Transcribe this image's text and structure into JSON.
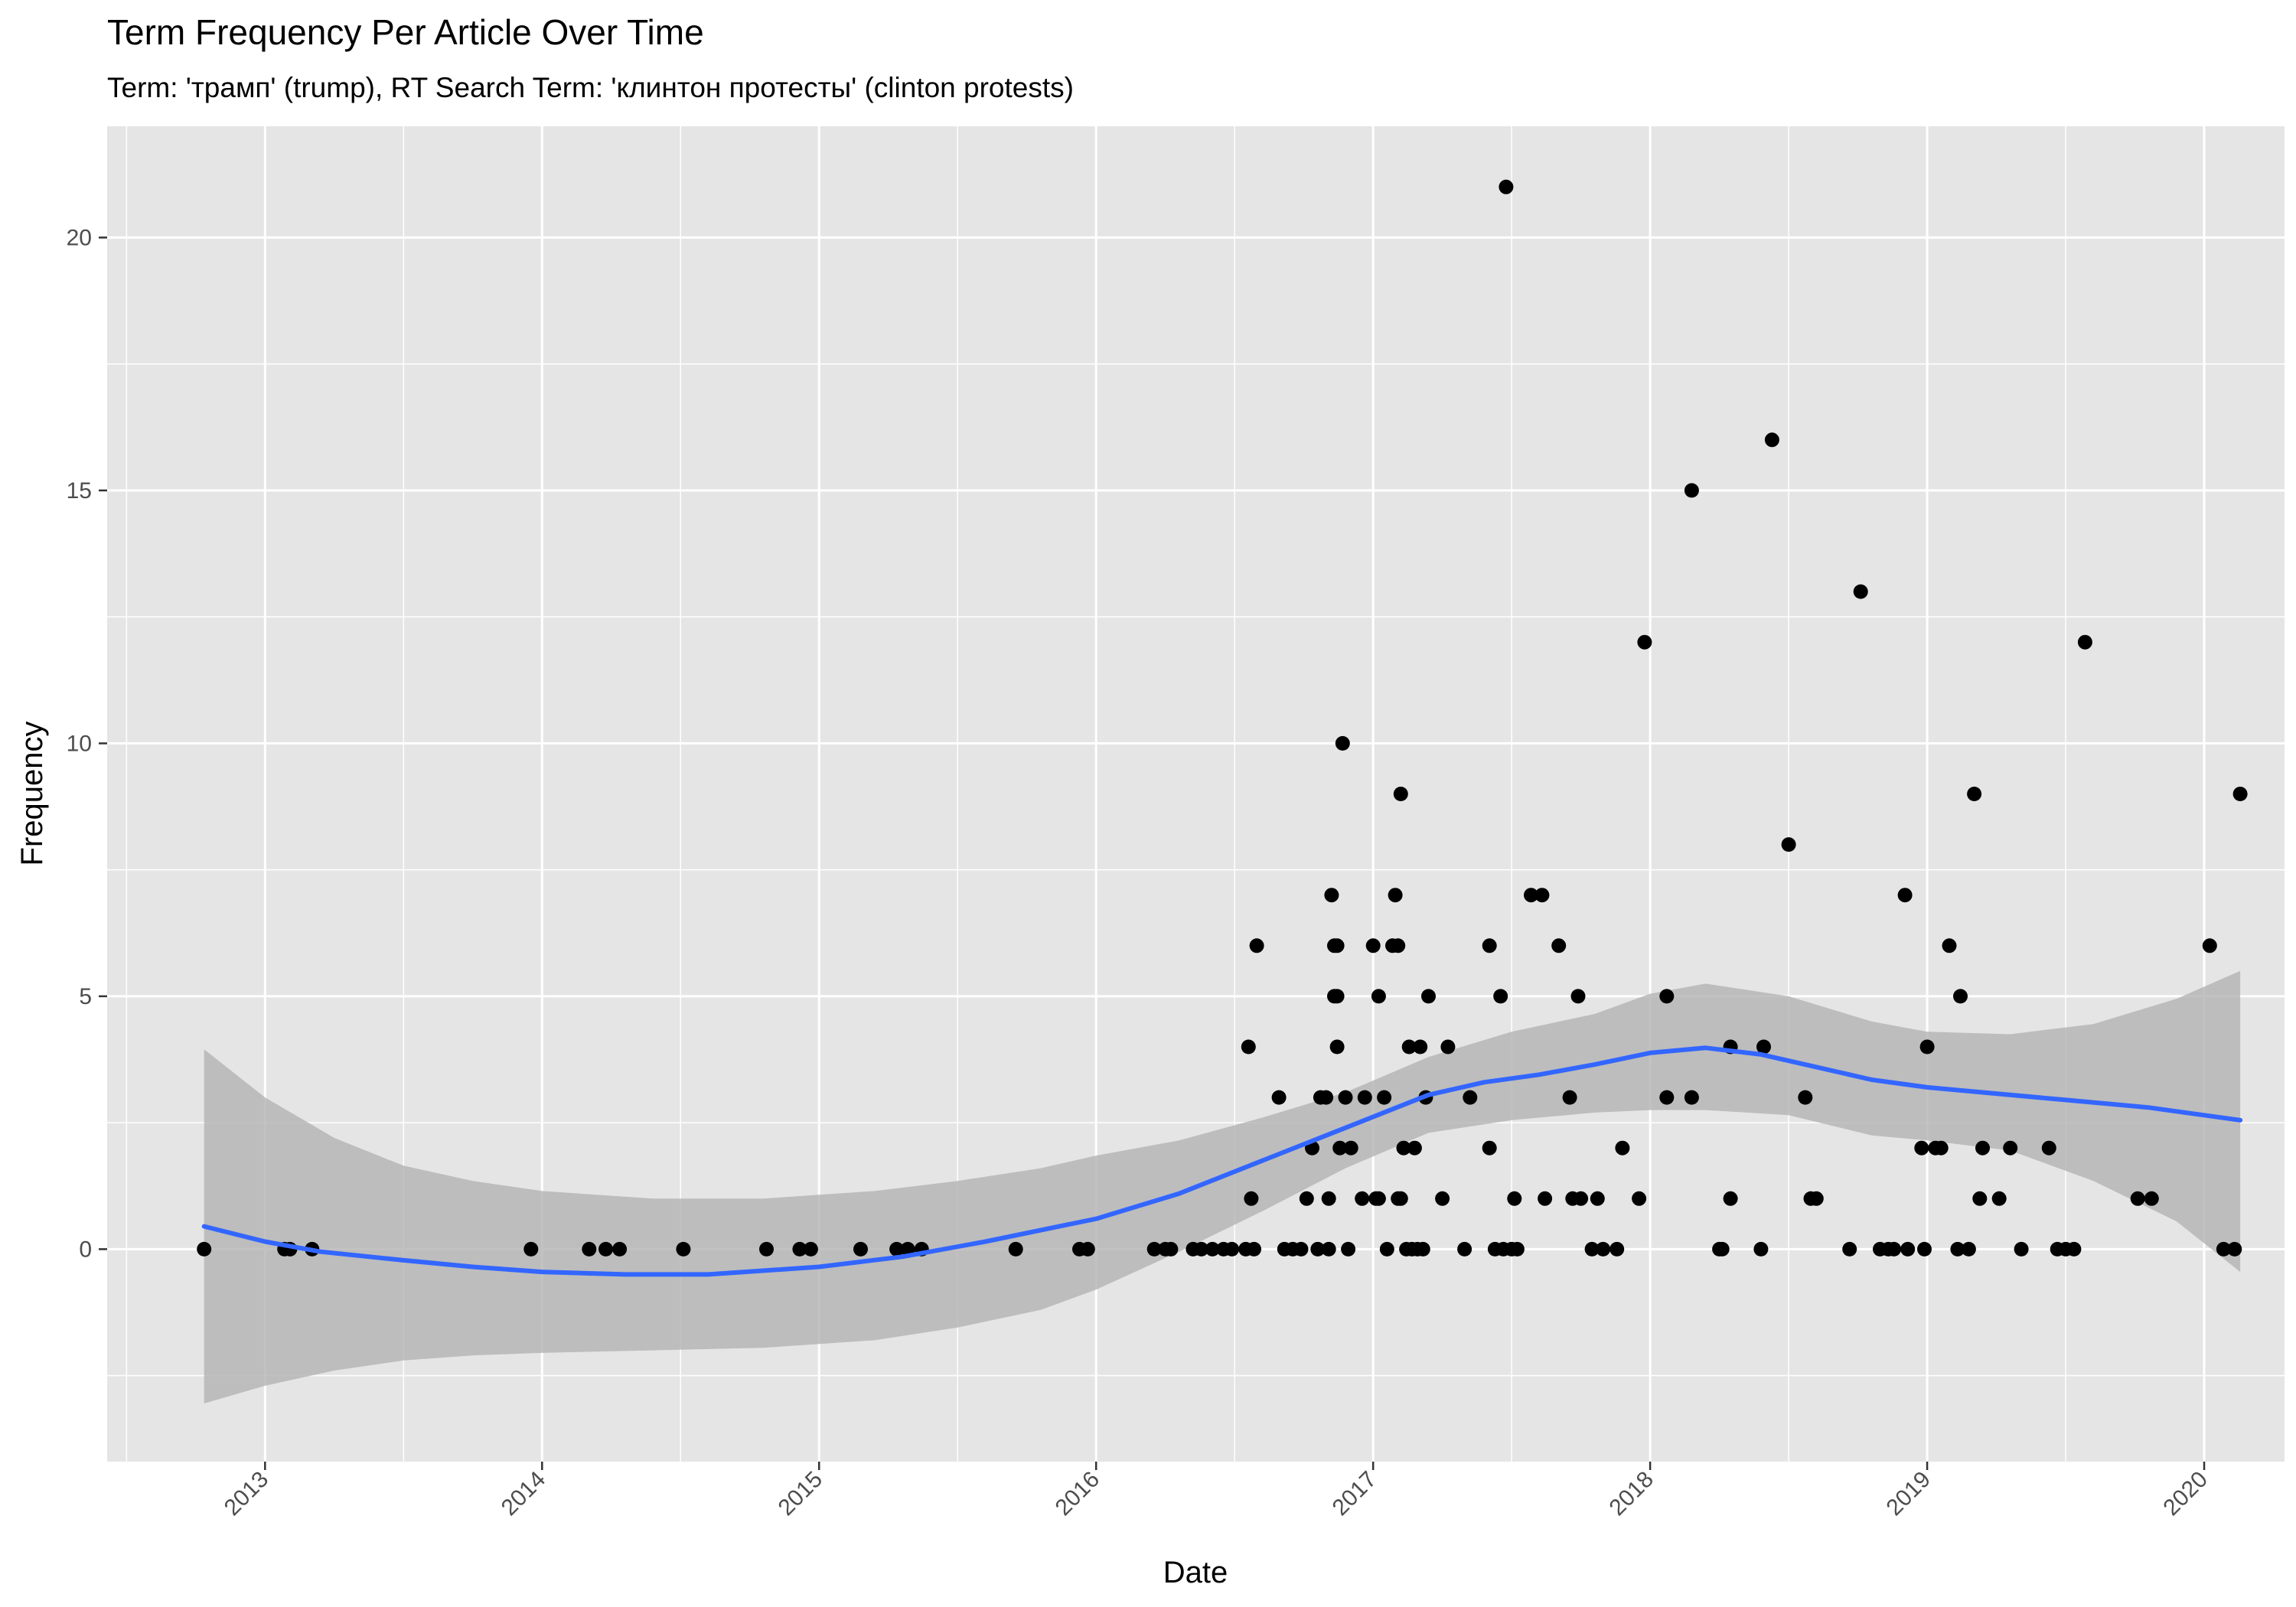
{
  "colors": {
    "panel_background": "#e5e5e5",
    "grid_line": "#ffffff",
    "point": "#000000",
    "smooth_line": "#3366ff",
    "confidence_band": "#b3b3b3",
    "tick_mark": "#333333",
    "tick_label": "#4d4d4d"
  },
  "chart_data": {
    "type": "scatter",
    "title": "Term Frequency Per Article Over Time",
    "subtitle": "Term: 'трамп' (trump), RT Search Term: 'клинтон протесты' (clinton protests)",
    "xlabel": "Date",
    "ylabel": "Frequency",
    "x_tick_labels": [
      "2013",
      "2014",
      "2015",
      "2016",
      "2017",
      "2018",
      "2019",
      "2020"
    ],
    "y_tick_labels": [
      "0",
      "5",
      "10",
      "15",
      "20"
    ],
    "xlim": [
      2012.43,
      2020.29
    ],
    "ylim": [
      -4.2,
      22.2
    ],
    "grid": true,
    "legend": "none",
    "points": [
      [
        2012.78,
        0
      ],
      [
        2013.07,
        0
      ],
      [
        2013.09,
        0
      ],
      [
        2013.17,
        0
      ],
      [
        2013.96,
        0
      ],
      [
        2014.17,
        0
      ],
      [
        2014.23,
        0
      ],
      [
        2014.28,
        0
      ],
      [
        2014.51,
        0
      ],
      [
        2014.81,
        0
      ],
      [
        2014.93,
        0
      ],
      [
        2014.97,
        0
      ],
      [
        2015.15,
        0
      ],
      [
        2015.28,
        0
      ],
      [
        2015.32,
        0
      ],
      [
        2015.37,
        0
      ],
      [
        2015.71,
        0
      ],
      [
        2015.94,
        0
      ],
      [
        2015.97,
        0
      ],
      [
        2016.21,
        0
      ],
      [
        2016.25,
        0
      ],
      [
        2016.27,
        0
      ],
      [
        2016.35,
        0
      ],
      [
        2016.38,
        0
      ],
      [
        2016.42,
        0
      ],
      [
        2016.46,
        0
      ],
      [
        2016.49,
        0
      ],
      [
        2016.54,
        0
      ],
      [
        2016.57,
        0
      ],
      [
        2016.55,
        4
      ],
      [
        2016.56,
        1
      ],
      [
        2016.58,
        6
      ],
      [
        2016.66,
        3
      ],
      [
        2016.68,
        0
      ],
      [
        2016.71,
        0
      ],
      [
        2016.74,
        0
      ],
      [
        2016.76,
        1
      ],
      [
        2016.78,
        2
      ],
      [
        2016.8,
        0
      ],
      [
        2016.81,
        3
      ],
      [
        2016.83,
        3
      ],
      [
        2016.84,
        0
      ],
      [
        2016.84,
        1
      ],
      [
        2016.85,
        7
      ],
      [
        2016.86,
        6
      ],
      [
        2016.86,
        5
      ],
      [
        2016.87,
        6
      ],
      [
        2016.87,
        4
      ],
      [
        2016.87,
        5
      ],
      [
        2016.88,
        2
      ],
      [
        2016.89,
        10
      ],
      [
        2016.9,
        3
      ],
      [
        2016.91,
        0
      ],
      [
        2016.92,
        2
      ],
      [
        2016.96,
        1
      ],
      [
        2016.97,
        3
      ],
      [
        2017.0,
        6
      ],
      [
        2017.01,
        1
      ],
      [
        2017.02,
        5
      ],
      [
        2017.02,
        1
      ],
      [
        2017.04,
        3
      ],
      [
        2017.05,
        0
      ],
      [
        2017.07,
        6
      ],
      [
        2017.08,
        7
      ],
      [
        2017.09,
        6
      ],
      [
        2017.09,
        1
      ],
      [
        2017.1,
        9
      ],
      [
        2017.1,
        1
      ],
      [
        2017.11,
        2
      ],
      [
        2017.12,
        0
      ],
      [
        2017.13,
        4
      ],
      [
        2017.14,
        0
      ],
      [
        2017.15,
        2
      ],
      [
        2017.16,
        0
      ],
      [
        2017.17,
        4
      ],
      [
        2017.18,
        0
      ],
      [
        2017.19,
        3
      ],
      [
        2017.2,
        5
      ],
      [
        2017.25,
        1
      ],
      [
        2017.27,
        4
      ],
      [
        2017.33,
        0
      ],
      [
        2017.35,
        3
      ],
      [
        2017.42,
        6
      ],
      [
        2017.42,
        2
      ],
      [
        2017.44,
        0
      ],
      [
        2017.46,
        5
      ],
      [
        2017.47,
        0
      ],
      [
        2017.48,
        21
      ],
      [
        2017.5,
        0
      ],
      [
        2017.51,
        1
      ],
      [
        2017.52,
        0
      ],
      [
        2017.57,
        7
      ],
      [
        2017.61,
        7
      ],
      [
        2017.62,
        1
      ],
      [
        2017.67,
        6
      ],
      [
        2017.71,
        3
      ],
      [
        2017.72,
        1
      ],
      [
        2017.74,
        5
      ],
      [
        2017.75,
        1
      ],
      [
        2017.79,
        0
      ],
      [
        2017.81,
        1
      ],
      [
        2017.83,
        0
      ],
      [
        2017.88,
        0
      ],
      [
        2017.9,
        2
      ],
      [
        2017.96,
        1
      ],
      [
        2017.98,
        12
      ],
      [
        2018.06,
        5
      ],
      [
        2018.06,
        3
      ],
      [
        2018.15,
        15
      ],
      [
        2018.15,
        3
      ],
      [
        2018.25,
        0
      ],
      [
        2018.26,
        0
      ],
      [
        2018.29,
        4
      ],
      [
        2018.29,
        1
      ],
      [
        2018.4,
        0
      ],
      [
        2018.41,
        4
      ],
      [
        2018.44,
        16
      ],
      [
        2018.5,
        8
      ],
      [
        2018.56,
        3
      ],
      [
        2018.58,
        1
      ],
      [
        2018.6,
        1
      ],
      [
        2018.72,
        0
      ],
      [
        2018.76,
        13
      ],
      [
        2018.83,
        0
      ],
      [
        2018.86,
        0
      ],
      [
        2018.88,
        0
      ],
      [
        2018.92,
        7
      ],
      [
        2018.93,
        0
      ],
      [
        2018.98,
        2
      ],
      [
        2018.99,
        0
      ],
      [
        2019.0,
        4
      ],
      [
        2019.03,
        2
      ],
      [
        2019.05,
        2
      ],
      [
        2019.08,
        6
      ],
      [
        2019.11,
        0
      ],
      [
        2019.12,
        5
      ],
      [
        2019.15,
        0
      ],
      [
        2019.17,
        9
      ],
      [
        2019.19,
        1
      ],
      [
        2019.2,
        2
      ],
      [
        2019.26,
        1
      ],
      [
        2019.3,
        2
      ],
      [
        2019.34,
        0
      ],
      [
        2019.44,
        2
      ],
      [
        2019.47,
        0
      ],
      [
        2019.5,
        0
      ],
      [
        2019.53,
        0
      ],
      [
        2019.57,
        12
      ],
      [
        2019.76,
        1
      ],
      [
        2019.81,
        1
      ],
      [
        2020.02,
        6
      ],
      [
        2020.07,
        0
      ],
      [
        2020.11,
        0
      ],
      [
        2020.13,
        9
      ]
    ],
    "smooth_line": [
      [
        2012.78,
        0.45
      ],
      [
        2013.0,
        0.15
      ],
      [
        2013.2,
        -0.05
      ],
      [
        2013.5,
        -0.22
      ],
      [
        2013.75,
        -0.35
      ],
      [
        2014.0,
        -0.45
      ],
      [
        2014.3,
        -0.5
      ],
      [
        2014.6,
        -0.5
      ],
      [
        2015.0,
        -0.35
      ],
      [
        2015.3,
        -0.15
      ],
      [
        2015.6,
        0.15
      ],
      [
        2016.0,
        0.6
      ],
      [
        2016.3,
        1.1
      ],
      [
        2016.6,
        1.75
      ],
      [
        2016.9,
        2.4
      ],
      [
        2017.2,
        3.05
      ],
      [
        2017.4,
        3.3
      ],
      [
        2017.6,
        3.45
      ],
      [
        2017.8,
        3.65
      ],
      [
        2018.0,
        3.88
      ],
      [
        2018.2,
        3.98
      ],
      [
        2018.4,
        3.85
      ],
      [
        2018.6,
        3.6
      ],
      [
        2018.8,
        3.35
      ],
      [
        2019.0,
        3.2
      ],
      [
        2019.2,
        3.1
      ],
      [
        2019.5,
        2.95
      ],
      [
        2019.8,
        2.8
      ],
      [
        2020.13,
        2.55
      ]
    ],
    "confidence_band": {
      "upper": [
        [
          2012.78,
          3.95
        ],
        [
          2013.0,
          3.0
        ],
        [
          2013.25,
          2.2
        ],
        [
          2013.5,
          1.65
        ],
        [
          2013.75,
          1.35
        ],
        [
          2014.0,
          1.15
        ],
        [
          2014.4,
          1.0
        ],
        [
          2014.8,
          1.0
        ],
        [
          2015.2,
          1.15
        ],
        [
          2015.5,
          1.35
        ],
        [
          2015.8,
          1.6
        ],
        [
          2016.0,
          1.85
        ],
        [
          2016.3,
          2.15
        ],
        [
          2016.6,
          2.6
        ],
        [
          2016.9,
          3.1
        ],
        [
          2017.2,
          3.8
        ],
        [
          2017.5,
          4.3
        ],
        [
          2017.8,
          4.65
        ],
        [
          2018.0,
          5.05
        ],
        [
          2018.2,
          5.25
        ],
        [
          2018.5,
          5.0
        ],
        [
          2018.8,
          4.5
        ],
        [
          2019.0,
          4.3
        ],
        [
          2019.3,
          4.25
        ],
        [
          2019.6,
          4.45
        ],
        [
          2019.9,
          4.95
        ],
        [
          2020.13,
          5.5
        ]
      ],
      "lower": [
        [
          2012.78,
          -3.05
        ],
        [
          2013.0,
          -2.7
        ],
        [
          2013.25,
          -2.4
        ],
        [
          2013.5,
          -2.2
        ],
        [
          2013.75,
          -2.1
        ],
        [
          2014.0,
          -2.05
        ],
        [
          2014.4,
          -2.0
        ],
        [
          2014.8,
          -1.95
        ],
        [
          2015.2,
          -1.8
        ],
        [
          2015.5,
          -1.55
        ],
        [
          2015.8,
          -1.2
        ],
        [
          2016.0,
          -0.8
        ],
        [
          2016.3,
          -0.05
        ],
        [
          2016.6,
          0.75
        ],
        [
          2016.9,
          1.6
        ],
        [
          2017.2,
          2.3
        ],
        [
          2017.5,
          2.55
        ],
        [
          2017.8,
          2.7
        ],
        [
          2018.0,
          2.75
        ],
        [
          2018.2,
          2.75
        ],
        [
          2018.5,
          2.65
        ],
        [
          2018.8,
          2.25
        ],
        [
          2019.0,
          2.15
        ],
        [
          2019.3,
          1.95
        ],
        [
          2019.6,
          1.35
        ],
        [
          2019.9,
          0.55
        ],
        [
          2020.13,
          -0.45
        ]
      ]
    }
  }
}
